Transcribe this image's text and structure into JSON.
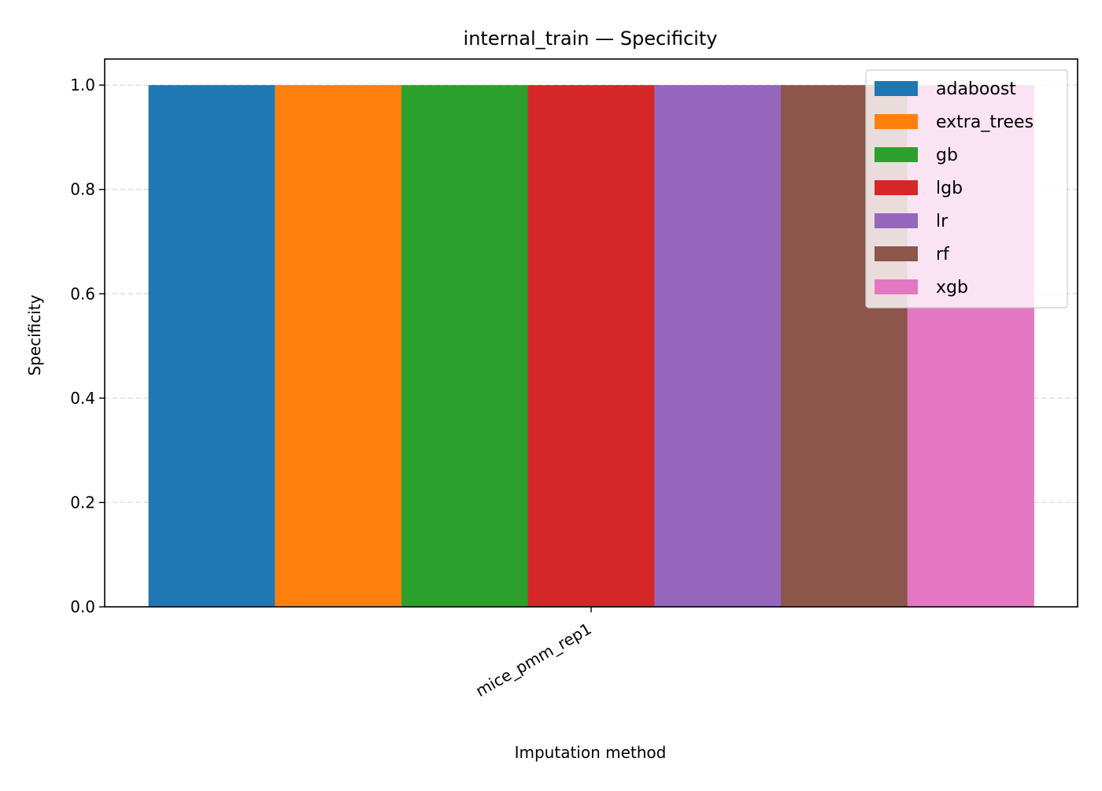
{
  "chart_data": {
    "type": "bar",
    "title": "internal_train — Specificity",
    "xlabel": "Imputation method",
    "ylabel": "Specificity",
    "categories": [
      "mice_pmm_rep1"
    ],
    "ylim": [
      0,
      1.05
    ],
    "yticks": [
      "0.0",
      "0.2",
      "0.4",
      "0.6",
      "0.8",
      "1.0"
    ],
    "grid": "y-dashed",
    "legend_position": "top-right",
    "series": [
      {
        "name": "adaboost",
        "color": "#1f77b4",
        "values": [
          1.0
        ]
      },
      {
        "name": "extra_trees",
        "color": "#ff7f0e",
        "values": [
          1.0
        ]
      },
      {
        "name": "gb",
        "color": "#2ca02c",
        "values": [
          1.0
        ]
      },
      {
        "name": "lgb",
        "color": "#d62728",
        "values": [
          1.0
        ]
      },
      {
        "name": "lr",
        "color": "#9467bd",
        "values": [
          1.0
        ]
      },
      {
        "name": "rf",
        "color": "#8c564b",
        "values": [
          1.0
        ]
      },
      {
        "name": "xgb",
        "color": "#e377c2",
        "values": [
          1.0
        ]
      }
    ]
  }
}
